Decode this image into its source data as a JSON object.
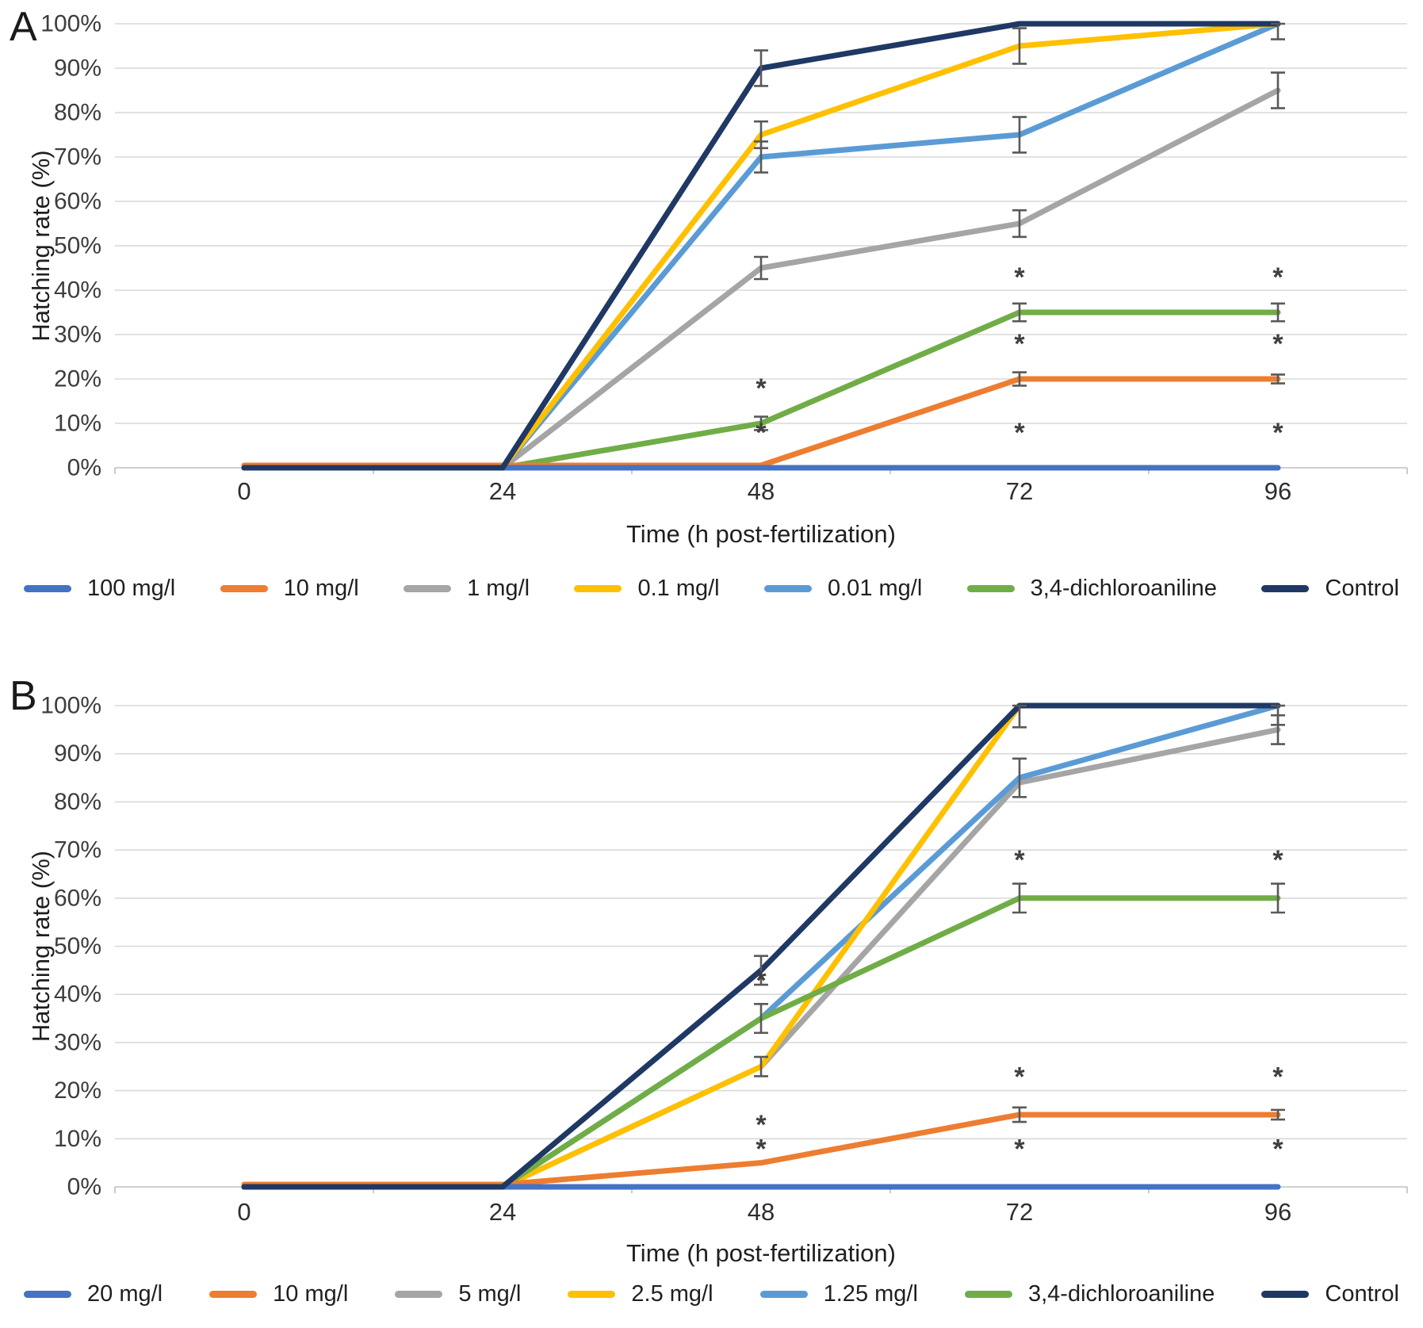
{
  "figure": {
    "panel_a_letter": "A",
    "panel_b_letter": "B"
  },
  "chart_data": [
    {
      "type": "line",
      "panel": "A",
      "xlabel": "Time (h post-fertilization)",
      "ylabel": "Hatching rate (%)",
      "x": [
        0,
        24,
        48,
        72,
        96
      ],
      "x_tick_labels": [
        "0",
        "24",
        "48",
        "72",
        "96"
      ],
      "y_tick_labels": [
        "0%",
        "10%",
        "20%",
        "30%",
        "40%",
        "50%",
        "60%",
        "70%",
        "80%",
        "90%",
        "100%"
      ],
      "ylim": [
        0,
        100
      ],
      "grid": "horizontal",
      "legend_position": "bottom",
      "significance_marker": "*",
      "series": [
        {
          "name": "100 mg/l",
          "color": "#4472C4",
          "values": [
            0,
            0,
            0,
            0,
            0
          ]
        },
        {
          "name": "10 mg/l",
          "color": "#ED7D31",
          "values": [
            0,
            0,
            0,
            20,
            20
          ]
        },
        {
          "name": "1 mg/l",
          "color": "#A5A5A5",
          "values": [
            0,
            0,
            45,
            55,
            85
          ]
        },
        {
          "name": "0.1 mg/l",
          "color": "#FFC000",
          "values": [
            0,
            0,
            75,
            95,
            100
          ]
        },
        {
          "name": "0.01 mg/l",
          "color": "#5B9BD5",
          "values": [
            0,
            0,
            70,
            75,
            100
          ]
        },
        {
          "name": "3,4-dichloroaniline",
          "color": "#70AD47",
          "values": [
            0,
            0,
            10,
            35,
            35
          ]
        },
        {
          "name": "Control",
          "color": "#1F3864",
          "values": [
            0,
            0,
            90,
            100,
            100
          ]
        }
      ],
      "error_bars": [
        {
          "series": "Control",
          "t": 48,
          "value": 90,
          "err": 4
        },
        {
          "series": "0.1 mg/l",
          "t": 48,
          "value": 75,
          "err": 3
        },
        {
          "series": "0.01 mg/l",
          "t": 48,
          "value": 70,
          "err": 3.5
        },
        {
          "series": "1 mg/l",
          "t": 48,
          "value": 45,
          "err": 2.5
        },
        {
          "series": "3,4-dichloroaniline",
          "t": 48,
          "value": 10,
          "err": 1.5
        },
        {
          "series": "0.1 mg/l",
          "t": 72,
          "value": 95,
          "err": 4
        },
        {
          "series": "0.01 mg/l",
          "t": 72,
          "value": 75,
          "err": 4
        },
        {
          "series": "1 mg/l",
          "t": 72,
          "value": 55,
          "err": 3
        },
        {
          "series": "3,4-dichloroaniline",
          "t": 72,
          "value": 35,
          "err": 2
        },
        {
          "series": "10 mg/l",
          "t": 72,
          "value": 20,
          "err": 1.5
        },
        {
          "series": "0.01 mg/l",
          "t": 96,
          "value": 100,
          "err": 3.5
        },
        {
          "series": "1 mg/l",
          "t": 96,
          "value": 85,
          "err": 4
        },
        {
          "series": "3,4-dichloroaniline",
          "t": 96,
          "value": 35,
          "err": 2
        },
        {
          "series": "10 mg/l",
          "t": 96,
          "value": 20,
          "err": 1
        }
      ],
      "asterisks": [
        {
          "t": 48,
          "y": 18
        },
        {
          "t": 48,
          "y": 8
        },
        {
          "t": 72,
          "y": 43
        },
        {
          "t": 72,
          "y": 28
        },
        {
          "t": 72,
          "y": 8
        },
        {
          "t": 96,
          "y": 43
        },
        {
          "t": 96,
          "y": 28
        },
        {
          "t": 96,
          "y": 8
        }
      ]
    },
    {
      "type": "line",
      "panel": "B",
      "xlabel": "Time (h post-fertilization)",
      "ylabel": "Hatching rate (%)",
      "x": [
        0,
        24,
        48,
        72,
        96
      ],
      "x_tick_labels": [
        "0",
        "24",
        "48",
        "72",
        "96"
      ],
      "y_tick_labels": [
        "0%",
        "10%",
        "20%",
        "30%",
        "40%",
        "50%",
        "60%",
        "70%",
        "80%",
        "90%",
        "100%"
      ],
      "ylim": [
        0,
        100
      ],
      "grid": "horizontal",
      "legend_position": "bottom",
      "significance_marker": "*",
      "series": [
        {
          "name": "20 mg/l",
          "color": "#4472C4",
          "values": [
            0,
            0,
            0,
            0,
            0
          ]
        },
        {
          "name": "10 mg/l",
          "color": "#ED7D31",
          "values": [
            0,
            0,
            5,
            15,
            15
          ]
        },
        {
          "name": "5 mg/l",
          "color": "#A5A5A5",
          "values": [
            0,
            0,
            25,
            84,
            95
          ]
        },
        {
          "name": "2.5 mg/l",
          "color": "#FFC000",
          "values": [
            0,
            0,
            25,
            100,
            100
          ]
        },
        {
          "name": "1.25 mg/l",
          "color": "#5B9BD5",
          "values": [
            0,
            0,
            35,
            85,
            100
          ]
        },
        {
          "name": "3,4-dichloroaniline",
          "color": "#70AD47",
          "values": [
            0,
            0,
            35,
            60,
            60
          ]
        },
        {
          "name": "Control",
          "color": "#1F3864",
          "values": [
            0,
            0,
            45,
            100,
            100
          ]
        }
      ],
      "error_bars": [
        {
          "series": "Control",
          "t": 48,
          "value": 45,
          "err": 3
        },
        {
          "series": "3,4-dichloroaniline",
          "t": 48,
          "value": 35,
          "err": 3
        },
        {
          "series": "2.5 mg/l",
          "t": 48,
          "value": 25,
          "err": 2
        },
        {
          "series": "Control",
          "t": 72,
          "value": 100,
          "err": 4.5
        },
        {
          "series": "1.25 mg/l",
          "t": 72,
          "value": 85,
          "err": 4
        },
        {
          "series": "3,4-dichloroaniline",
          "t": 72,
          "value": 60,
          "err": 3
        },
        {
          "series": "10 mg/l",
          "t": 72,
          "value": 15,
          "err": 1.5
        },
        {
          "series": "1.25 mg/l",
          "t": 96,
          "value": 100,
          "err": 4
        },
        {
          "series": "5 mg/l",
          "t": 96,
          "value": 95,
          "err": 3
        },
        {
          "series": "3,4-dichloroaniline",
          "t": 96,
          "value": 60,
          "err": 3
        },
        {
          "series": "10 mg/l",
          "t": 96,
          "value": 15,
          "err": 1
        }
      ],
      "asterisks": [
        {
          "t": 48,
          "y": 43
        },
        {
          "t": 48,
          "y": 13
        },
        {
          "t": 48,
          "y": 8
        },
        {
          "t": 72,
          "y": 68
        },
        {
          "t": 72,
          "y": 23
        },
        {
          "t": 72,
          "y": 8
        },
        {
          "t": 96,
          "y": 68
        },
        {
          "t": 96,
          "y": 23
        },
        {
          "t": 96,
          "y": 8
        }
      ]
    }
  ]
}
